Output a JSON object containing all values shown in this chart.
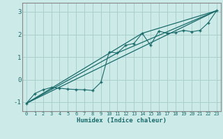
{
  "xlabel": "Humidex (Indice chaleur)",
  "background_color": "#cceae8",
  "grid_color": "#aacfcc",
  "line_color": "#1a6b6b",
  "xlim": [
    -0.5,
    23.5
  ],
  "ylim": [
    -1.4,
    3.4
  ],
  "xticks": [
    0,
    1,
    2,
    3,
    4,
    5,
    6,
    7,
    8,
    9,
    10,
    11,
    12,
    13,
    14,
    15,
    16,
    17,
    18,
    19,
    20,
    21,
    22,
    23
  ],
  "yticks": [
    -1,
    0,
    1,
    2,
    3
  ],
  "scatter_x": [
    0,
    1,
    2,
    3,
    4,
    5,
    6,
    7,
    8,
    9,
    10,
    11,
    12,
    13,
    14,
    15,
    16,
    17,
    18,
    19,
    20,
    21,
    22,
    23
  ],
  "scatter_y": [
    -1.05,
    -0.62,
    -0.45,
    -0.35,
    -0.38,
    -0.42,
    -0.44,
    -0.45,
    -0.48,
    -0.12,
    1.22,
    1.18,
    1.52,
    1.6,
    2.05,
    1.52,
    2.15,
    2.05,
    2.08,
    2.18,
    2.12,
    2.18,
    2.52,
    3.05
  ],
  "line1_x": [
    0,
    23
  ],
  "line1_y": [
    -1.05,
    3.05
  ],
  "line2_x": [
    0,
    23
  ],
  "line2_y": [
    -1.05,
    3.05
  ],
  "line3_x": [
    0,
    14,
    23
  ],
  "line3_y": [
    -1.05,
    2.05,
    3.05
  ],
  "line4_x": [
    0,
    11,
    23
  ],
  "line4_y": [
    -1.05,
    1.18,
    3.05
  ]
}
